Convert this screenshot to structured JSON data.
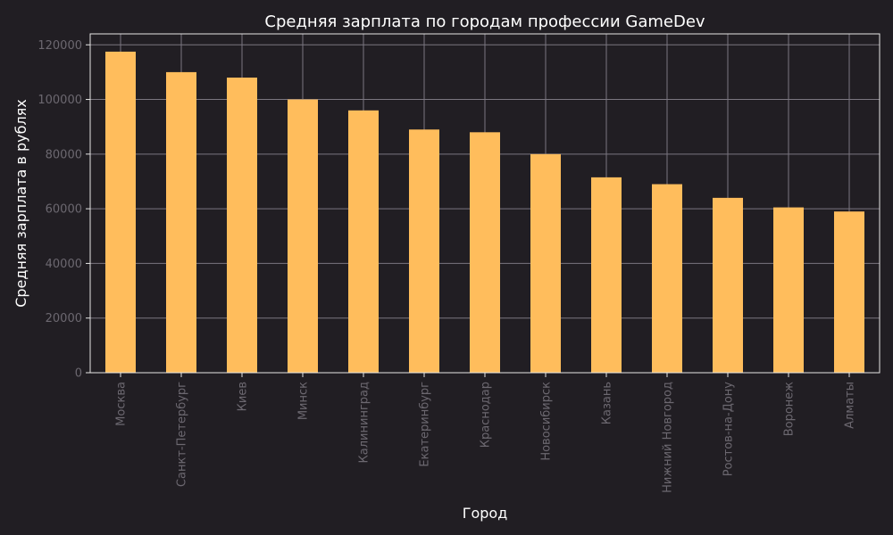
{
  "colors": {
    "background": "#211e23",
    "bar": "#ffbd5c",
    "grid": "#7a7680",
    "axes": "#e6e6e6",
    "title_text": "#ffffff",
    "tick_text": "#6c6870"
  },
  "chart_data": {
    "type": "bar",
    "title": "Средняя зарплата по городам профессии GameDev",
    "xlabel": "Город",
    "ylabel": "Средняя зарплата в рублях",
    "categories": [
      "Москва",
      "Санкт-Петербург",
      "Киев",
      "Минск",
      "Калининград",
      "Екатеринбург",
      "Краснодар",
      "Новосибирск",
      "Казань",
      "Нижний Новгород",
      "Ростов-на-Дону",
      "Воронеж",
      "Алматы"
    ],
    "values": [
      117500,
      110000,
      108000,
      100000,
      96000,
      89000,
      88000,
      80000,
      71500,
      69000,
      64000,
      60500,
      59000
    ],
    "ylim": [
      0,
      124000
    ],
    "yticks": [
      0,
      20000,
      40000,
      60000,
      80000,
      100000,
      120000
    ],
    "grid": true,
    "legend": "none"
  }
}
